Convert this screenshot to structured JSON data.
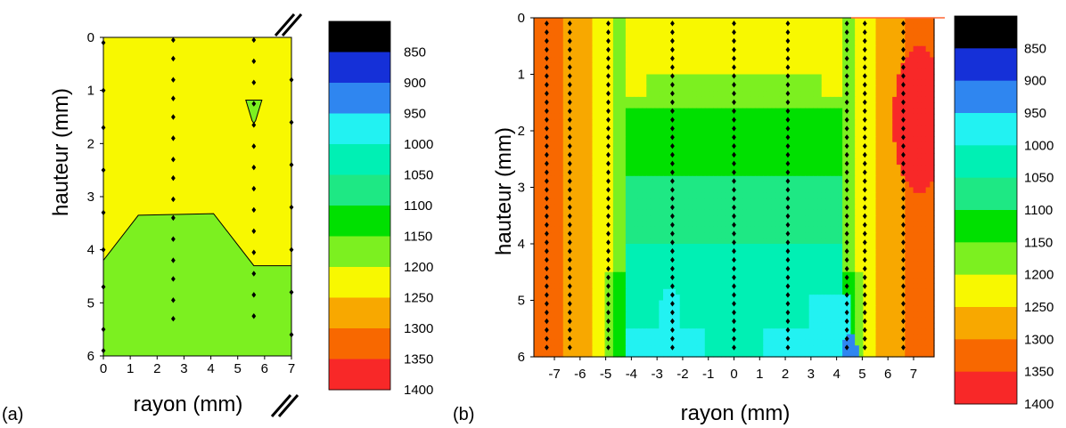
{
  "colors": {
    "scale": [
      "#000000",
      "#1530d8",
      "#2f86f0",
      "#22f2f2",
      "#00f0b4",
      "#1ee884",
      "#00e000",
      "#7cf020",
      "#f8f800",
      "#f8a800",
      "#f86800",
      "#f82828"
    ],
    "contour_line": "#000000",
    "marker": "#000000",
    "cut_mark": "#ff6633"
  },
  "panel_a": {
    "label": "(a)",
    "xlabel": "rayon (mm)",
    "ylabel": "hauteur (mm)",
    "xticks": [
      "0",
      "1",
      "2",
      "3",
      "4",
      "5",
      "6",
      "7"
    ],
    "yticks": [
      "0",
      "1",
      "2",
      "3",
      "4",
      "5",
      "6"
    ]
  },
  "panel_b": {
    "label": "(b)",
    "xlabel": "rayon (mm)",
    "ylabel": "hauteur (mm)",
    "xticks": [
      "-7",
      "-6",
      "-5",
      "-4",
      "-3",
      "-2",
      "-1",
      "0",
      "1",
      "2",
      "3",
      "4",
      "5",
      "6",
      "7"
    ],
    "yticks": [
      "0",
      "1",
      "2",
      "3",
      "4",
      "5",
      "6"
    ]
  },
  "colorbar": {
    "labels": [
      "850",
      "900",
      "950",
      "1000",
      "1050",
      "1100",
      "1150",
      "1200",
      "1250",
      "1300",
      "1350",
      "1400"
    ]
  },
  "chart_data": [
    {
      "type": "heatmap",
      "title": "",
      "panel": "(a)",
      "xlabel": "rayon (mm)",
      "ylabel": "hauteur (mm)",
      "xlim": [
        0,
        7
      ],
      "ylim": [
        6,
        0
      ],
      "y_axis_inverted": true,
      "colorbar_levels": [
        850,
        900,
        950,
        1000,
        1050,
        1100,
        1150,
        1200,
        1250,
        1300,
        1350,
        1400
      ],
      "regions": [
        {
          "level_range": [
            1200,
            1250
          ],
          "description_boundary": [
            [
              0,
              4.2
            ],
            [
              1.3,
              3.35
            ],
            [
              4.1,
              3.32
            ],
            [
              5.6,
              4.3
            ],
            [
              7,
              4.3
            ]
          ],
          "side": "above"
        },
        {
          "level_range": [
            1150,
            1200
          ],
          "side": "below boundary"
        },
        {
          "level_range": [
            1150,
            1200
          ],
          "center": [
            5.6,
            1.35
          ]
        }
      ],
      "measurement_columns_mm": [
        0,
        2.6,
        5.6,
        7
      ],
      "measurement_points": [
        {
          "r": 0,
          "h": [
            0.1,
            1,
            1.7,
            2.5,
            3.3,
            4.0,
            4.7,
            5.5,
            5.9
          ]
        },
        {
          "r": 2.6,
          "h": [
            0.05,
            0.4,
            0.8,
            1.15,
            1.5,
            1.9,
            2.3,
            2.65,
            3.05,
            3.4,
            3.8,
            4.2,
            4.55,
            4.95,
            5.3
          ]
        },
        {
          "r": 5.6,
          "h": [
            0.05,
            0.45,
            0.85,
            1.25,
            1.65,
            2.05,
            2.45,
            2.85,
            3.25,
            3.65,
            4.05,
            4.45,
            4.85,
            5.25
          ]
        },
        {
          "r": 7,
          "h": [
            0.8,
            1.6,
            2.4,
            3.2,
            4.0,
            4.8,
            5.6
          ]
        }
      ]
    },
    {
      "type": "heatmap",
      "title": "",
      "panel": "(b)",
      "xlabel": "rayon (mm)",
      "ylabel": "hauteur (mm)",
      "xlim": [
        -7.8,
        7.8
      ],
      "ylim": [
        6,
        0
      ],
      "y_axis_inverted": true,
      "colorbar_levels": [
        850,
        900,
        950,
        1000,
        1050,
        1100,
        1150,
        1200,
        1250,
        1300,
        1350,
        1400
      ],
      "symmetric_profile": {
        "level_by_|r|": [
          {
            "r_range": [
              6.6,
              7.8
            ],
            "value": 1325
          },
          {
            "r_range": [
              5.6,
              6.6
            ],
            "value": 1275
          },
          {
            "r_range": [
              4.7,
              5.6
            ],
            "value": 1225
          },
          {
            "r_range": [
              4.2,
              4.7
            ],
            "value": 1175
          },
          {
            "r_range": [
              0,
              4.2
            ],
            "value_by_height": [
              {
                "h": 0.0,
                "value": 1225
              },
              {
                "h": 1.0,
                "value": 1175
              },
              {
                "h": 1.6,
                "value": 1125
              },
              {
                "h": 2.8,
                "value": 1075
              },
              {
                "h": 4.0,
                "value": 1025
              },
              {
                "h": 5.5,
                "value": 975
              }
            ]
          }
        ],
        "hot_spot": {
          "r": 7.2,
          "h": 1.8,
          "value": 1375
        },
        "cool_spot": {
          "r": -2.5,
          "h": 5.3,
          "value": 975
        },
        "minimum": {
          "r": 4.5,
          "h": 5.9,
          "value": 925
        }
      },
      "measurement_columns_mm": [
        -7.3,
        -6.4,
        -4.9,
        -2.4,
        0,
        2.1,
        4.4,
        5.1,
        6.6
      ]
    }
  ]
}
